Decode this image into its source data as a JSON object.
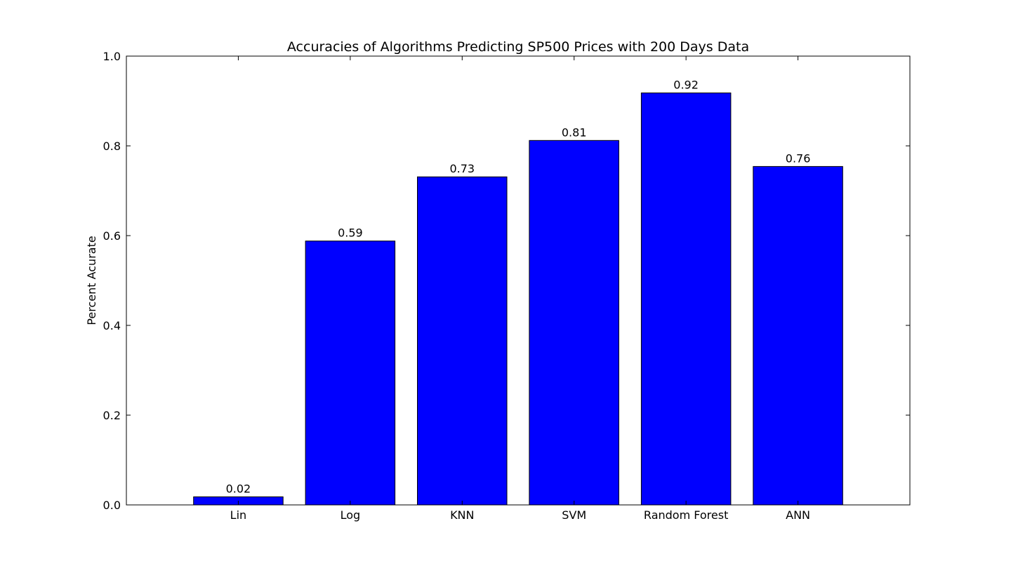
{
  "chart_data": {
    "type": "bar",
    "title": "Accuracies of Algorithms Predicting SP500 Prices with 200 Days Data",
    "xlabel": "",
    "ylabel": "Percent Acurate",
    "categories": [
      "Lin",
      "Log",
      "KNN",
      "SVM",
      "Random Forest",
      "ANN"
    ],
    "values": [
      0.02,
      0.59,
      0.73,
      0.81,
      0.92,
      0.76
    ],
    "bar_heights": [
      0.018,
      0.588,
      0.731,
      0.812,
      0.918,
      0.754
    ],
    "data_labels": [
      "0.02",
      "0.59",
      "0.73",
      "0.81",
      "0.92",
      "0.76"
    ],
    "ylim": [
      0.0,
      1.0
    ],
    "xlim": [
      -1.0,
      6.0
    ],
    "bar_positions": [
      0,
      1,
      2,
      3,
      4,
      5
    ],
    "bar_width": 0.8,
    "yticks": [
      0.0,
      0.2,
      0.4,
      0.6,
      0.8,
      1.0
    ],
    "ytick_labels": [
      "0.0",
      "0.2",
      "0.4",
      "0.6",
      "0.8",
      "1.0"
    ],
    "bar_color": "#0000ff",
    "edge_color": "#000000",
    "grid": false,
    "legend": false
  }
}
